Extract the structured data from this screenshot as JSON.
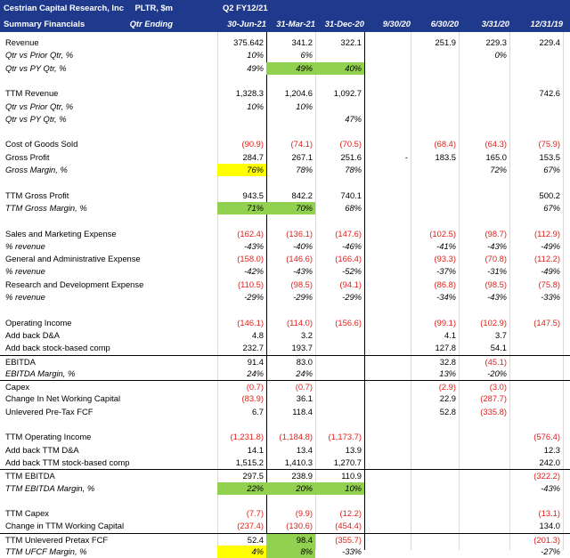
{
  "header": {
    "company": "Cestrian Capital Research, Inc",
    "subtitle": "Summary Financials",
    "ticker": "PLTR, $m",
    "period_type": "Qtr Ending",
    "fiscal": "Q2 FY12/21",
    "columns": [
      "30-Jun-21",
      "31-Mar-21",
      "31-Dec-20",
      "9/30/20",
      "6/30/20",
      "3/31/20",
      "12/31/19"
    ]
  },
  "rows": [
    {
      "label": "Revenue",
      "italic": false,
      "values": [
        "375.642",
        "341.2",
        "322.1",
        "",
        "251.9",
        "229.3",
        "229.4"
      ]
    },
    {
      "label": "Qtr vs Prior Qtr, %",
      "italic": true,
      "values": [
        "10%",
        "6%",
        "",
        "",
        "",
        "0%",
        ""
      ]
    },
    {
      "label": "Qtr vs PY Qtr, %",
      "italic": true,
      "values": [
        "49%",
        "49%",
        "40%",
        "",
        "",
        "",
        ""
      ],
      "fills": [
        "",
        "green",
        "green",
        "",
        "",
        "",
        ""
      ]
    },
    {
      "label": "",
      "values": [
        "",
        "",
        "",
        "",
        "",
        "",
        ""
      ]
    },
    {
      "label": "TTM Revenue",
      "italic": false,
      "values": [
        "1,328.3",
        "1,204.6",
        "1,092.7",
        "",
        "",
        "",
        "742.6"
      ]
    },
    {
      "label": "Qtr vs Prior Qtr, %",
      "italic": true,
      "values": [
        "10%",
        "10%",
        "",
        "",
        "",
        "",
        ""
      ]
    },
    {
      "label": "Qtr vs PY Qtr, %",
      "italic": true,
      "values": [
        "",
        "",
        "47%",
        "",
        "",
        "",
        ""
      ]
    },
    {
      "label": "",
      "values": [
        "",
        "",
        "",
        "",
        "",
        "",
        ""
      ]
    },
    {
      "label": "Cost of Goods Sold",
      "italic": false,
      "values": [
        "(90.9)",
        "(74.1)",
        "(70.5)",
        "",
        "(68.4)",
        "(64.3)",
        "(75.9)"
      ]
    },
    {
      "label": "Gross Profit",
      "italic": false,
      "values": [
        "284.7",
        "267.1",
        "251.6",
        "-",
        "183.5",
        "165.0",
        "153.5"
      ]
    },
    {
      "label": "Gross Margin, %",
      "italic": true,
      "values": [
        "76%",
        "78%",
        "78%",
        "",
        "",
        "72%",
        "67%"
      ],
      "fills": [
        "yellow",
        "",
        "",
        "",
        "",
        "",
        ""
      ]
    },
    {
      "label": "",
      "values": [
        "",
        "",
        "",
        "",
        "",
        "",
        ""
      ]
    },
    {
      "label": "TTM Gross Profit",
      "italic": false,
      "values": [
        "943.5",
        "842.2",
        "740.1",
        "",
        "",
        "",
        "500.2"
      ]
    },
    {
      "label": "TTM Gross Margin, %",
      "italic": true,
      "values": [
        "71%",
        "70%",
        "68%",
        "",
        "",
        "",
        "67%"
      ],
      "fills": [
        "green",
        "green",
        "",
        "",
        "",
        "",
        ""
      ]
    },
    {
      "label": "",
      "values": [
        "",
        "",
        "",
        "",
        "",
        "",
        ""
      ]
    },
    {
      "label": "Sales and Marketing Expense",
      "italic": false,
      "values": [
        "(162.4)",
        "(136.1)",
        "(147.6)",
        "",
        "(102.5)",
        "(98.7)",
        "(112.9)"
      ]
    },
    {
      "label": "% revenue",
      "italic": true,
      "values": [
        "-43%",
        "-40%",
        "-46%",
        "",
        "-41%",
        "-43%",
        "-49%"
      ]
    },
    {
      "label": "General and Administrative Expense",
      "italic": false,
      "values": [
        "(158.0)",
        "(146.6)",
        "(166.4)",
        "",
        "(93.3)",
        "(70.8)",
        "(112.2)"
      ]
    },
    {
      "label": "% revenue",
      "italic": true,
      "values": [
        "-42%",
        "-43%",
        "-52%",
        "",
        "-37%",
        "-31%",
        "-49%"
      ]
    },
    {
      "label": "Research and Development Expense",
      "italic": false,
      "values": [
        "(110.5)",
        "(98.5)",
        "(94.1)",
        "",
        "(86.8)",
        "(98.5)",
        "(75.8)"
      ]
    },
    {
      "label": "% revenue",
      "italic": true,
      "values": [
        "-29%",
        "-29%",
        "-29%",
        "",
        "-34%",
        "-43%",
        "-33%"
      ]
    },
    {
      "label": "",
      "values": [
        "",
        "",
        "",
        "",
        "",
        "",
        ""
      ]
    },
    {
      "label": "Operating Income",
      "italic": false,
      "values": [
        "(146.1)",
        "(114.0)",
        "(156.6)",
        "",
        "(99.1)",
        "(102.9)",
        "(147.5)"
      ]
    },
    {
      "label": "Add back D&A",
      "italic": false,
      "values": [
        "4.8",
        "3.2",
        "",
        "",
        "4.1",
        "3.7",
        ""
      ]
    },
    {
      "label": "Add back stock-based comp",
      "italic": false,
      "values": [
        "232.7",
        "193.7",
        "",
        "",
        "127.8",
        "54.1",
        ""
      ]
    },
    {
      "label": "EBITDA",
      "italic": false,
      "values": [
        "91.4",
        "83.0",
        "",
        "",
        "32.8",
        "(45.1)",
        ""
      ],
      "top": true
    },
    {
      "label": "EBITDA Margin, %",
      "italic": true,
      "values": [
        "24%",
        "24%",
        "",
        "",
        "13%",
        "-20%",
        ""
      ]
    },
    {
      "label": "Capex",
      "italic": false,
      "values": [
        "(0.7)",
        "(0.7)",
        "",
        "",
        "(2.9)",
        "(3.0)",
        ""
      ],
      "top": true
    },
    {
      "label": "Change In Net Working Capital",
      "italic": false,
      "values": [
        "(83.9)",
        "36.1",
        "",
        "",
        "22.9",
        "(287.7)",
        ""
      ]
    },
    {
      "label": "Unlevered Pre-Tax FCF",
      "italic": false,
      "values": [
        "6.7",
        "118.4",
        "",
        "",
        "52.8",
        "(335.8)",
        ""
      ]
    },
    {
      "label": "",
      "values": [
        "",
        "",
        "",
        "",
        "",
        "",
        ""
      ]
    },
    {
      "label": "TTM Operating Income",
      "italic": false,
      "values": [
        "(1,231.8)",
        "(1,184.8)",
        "(1,173.7)",
        "",
        "",
        "",
        "(576.4)"
      ]
    },
    {
      "label": "Add back TTM D&A",
      "italic": false,
      "values": [
        "14.1",
        "13.4",
        "13.9",
        "",
        "",
        "",
        "12.3"
      ]
    },
    {
      "label": "Add back TTM stock-based comp",
      "italic": false,
      "values": [
        "1,515.2",
        "1,410.3",
        "1,270.7",
        "",
        "",
        "",
        "242.0"
      ]
    },
    {
      "label": "TTM EBITDA",
      "italic": false,
      "values": [
        "297.5",
        "238.9",
        "110.9",
        "",
        "",
        "",
        "(322.2)"
      ],
      "top": true
    },
    {
      "label": "TTM EBITDA Margin, %",
      "italic": true,
      "values": [
        "22%",
        "20%",
        "10%",
        "",
        "",
        "",
        "-43%"
      ],
      "fills": [
        "green",
        "green",
        "green",
        "",
        "",
        "",
        ""
      ]
    },
    {
      "label": "",
      "values": [
        "",
        "",
        "",
        "",
        "",
        "",
        ""
      ]
    },
    {
      "label": "TTM Capex",
      "italic": false,
      "values": [
        "(7.7)",
        "(9.9)",
        "(12.2)",
        "",
        "",
        "",
        "(13.1)"
      ]
    },
    {
      "label": "Change in TTM Working Capital",
      "italic": false,
      "values": [
        "(237.4)",
        "(130.6)",
        "(454.4)",
        "",
        "",
        "",
        "134.0"
      ]
    },
    {
      "label": "TTM Unlevered Pretax FCF",
      "italic": false,
      "values": [
        "52.4",
        "98.4",
        "(355.7)",
        "",
        "",
        "",
        "(201.3)"
      ],
      "top": true,
      "fills": [
        "",
        "green",
        "",
        "",
        "",
        "",
        ""
      ]
    },
    {
      "label": "TTM UFCF Margin, %",
      "italic": true,
      "values": [
        "4%",
        "8%",
        "-33%",
        "",
        "",
        "",
        "-27%"
      ],
      "fills": [
        "yellow",
        "green",
        "",
        "",
        "",
        "",
        ""
      ]
    }
  ]
}
